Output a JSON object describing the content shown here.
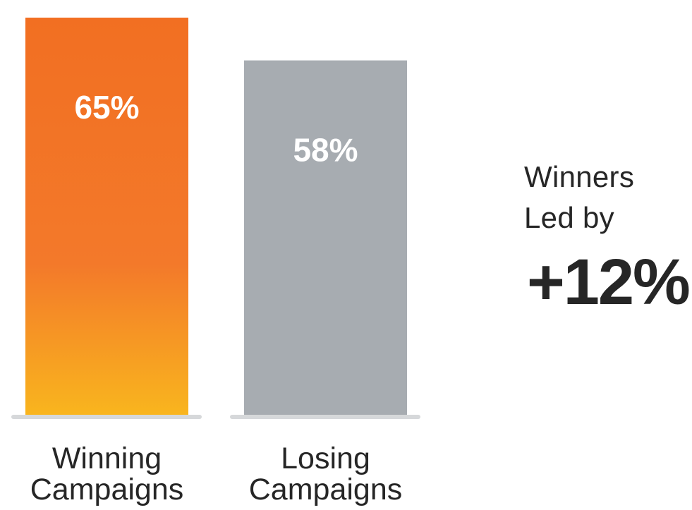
{
  "chart_data": {
    "type": "bar",
    "categories": [
      "Winning Campaigns",
      "Losing Campaigns"
    ],
    "category_lines": [
      [
        "Winning",
        "Campaigns"
      ],
      [
        "Losing",
        "Campaigns"
      ]
    ],
    "values": [
      65,
      58
    ],
    "value_labels": [
      "65%",
      "58%"
    ],
    "title": "",
    "xlabel": "",
    "ylabel": "",
    "ylim": [
      0,
      65
    ],
    "grid": false,
    "legend": "none",
    "colors": {
      "winning_top": "#F26F22",
      "winning_bottom": "#F9B51E",
      "losing": "#A7ACB1",
      "baseline": "#D6D8DA",
      "value_text": "#FFFFFF",
      "label_text": "#262626"
    }
  },
  "annotation": {
    "line1": "Winners",
    "line2": "Led by",
    "value": "+12%"
  }
}
